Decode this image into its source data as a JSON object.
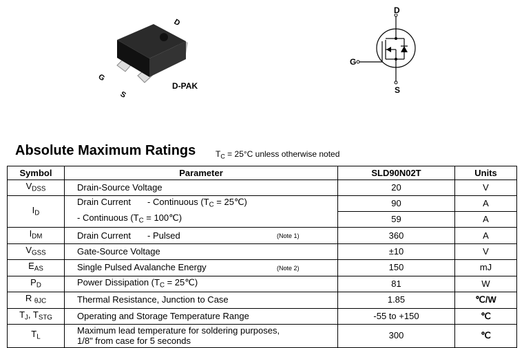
{
  "package": {
    "label": "D-PAK",
    "pins": {
      "d": "D",
      "g": "G",
      "s": "S"
    }
  },
  "schematic": {
    "pins": {
      "d": "D",
      "g": "G",
      "s": "S"
    }
  },
  "title": "Absolute Maximum Ratings",
  "condition": {
    "prefix": "T",
    "sub": "C",
    "text": " = 25°C unless otherwise noted"
  },
  "table": {
    "headers": [
      "Symbol",
      "Parameter",
      "SLD90N02T",
      "Units"
    ],
    "rows": [
      {
        "sym": "V",
        "sub": "DSS",
        "param": "Drain-Source Voltage",
        "value": "20",
        "unit": "V"
      },
      {
        "sym": "I",
        "sub": "D",
        "param": "Drain Current",
        "cond1": "- Continuous (T",
        "cond1sub": "C",
        "cond1end": " = 25℃)",
        "value": "90",
        "unit": "A",
        "cond2": "- Continuous (T",
        "cond2sub": "C",
        "cond2end": " = 100℃)",
        "value2": "59",
        "unit2": "A"
      },
      {
        "sym": "I",
        "sub": "DM",
        "param": "Drain Current",
        "cond": "- Pulsed",
        "note": "(Note 1)",
        "value": "360",
        "unit": "A"
      },
      {
        "sym": "V",
        "sub": "GSS",
        "param": "Gate-Source Voltage",
        "value": "±10",
        "unit": "V"
      },
      {
        "sym": "E",
        "sub": "AS",
        "param": "Single Pulsed Avalanche Energy",
        "note": "(Note 2)",
        "value": "150",
        "unit": "mJ"
      },
      {
        "sym": "P",
        "sub": "D",
        "param": "Power Dissipation (T",
        "psub": "C",
        "pend": " = 25℃)",
        "value": "81",
        "unit": "W"
      },
      {
        "sym": "R ",
        "sub": "θJC",
        "param": "Thermal Resistance, Junction to Case",
        "value": "1.85",
        "unit": "℃/W"
      },
      {
        "sym": "T",
        "sub": "J",
        "sym2": ", T",
        "sub2": "STG",
        "param": "Operating and Storage Temperature Range",
        "value": "-55 to +150",
        "unit": "℃"
      },
      {
        "sym": "T",
        "sub": "L",
        "param": "Maximum lead temperature for soldering purposes,",
        "param2": "1/8\" from case for 5 seconds",
        "value": "300",
        "unit": "℃"
      }
    ]
  }
}
